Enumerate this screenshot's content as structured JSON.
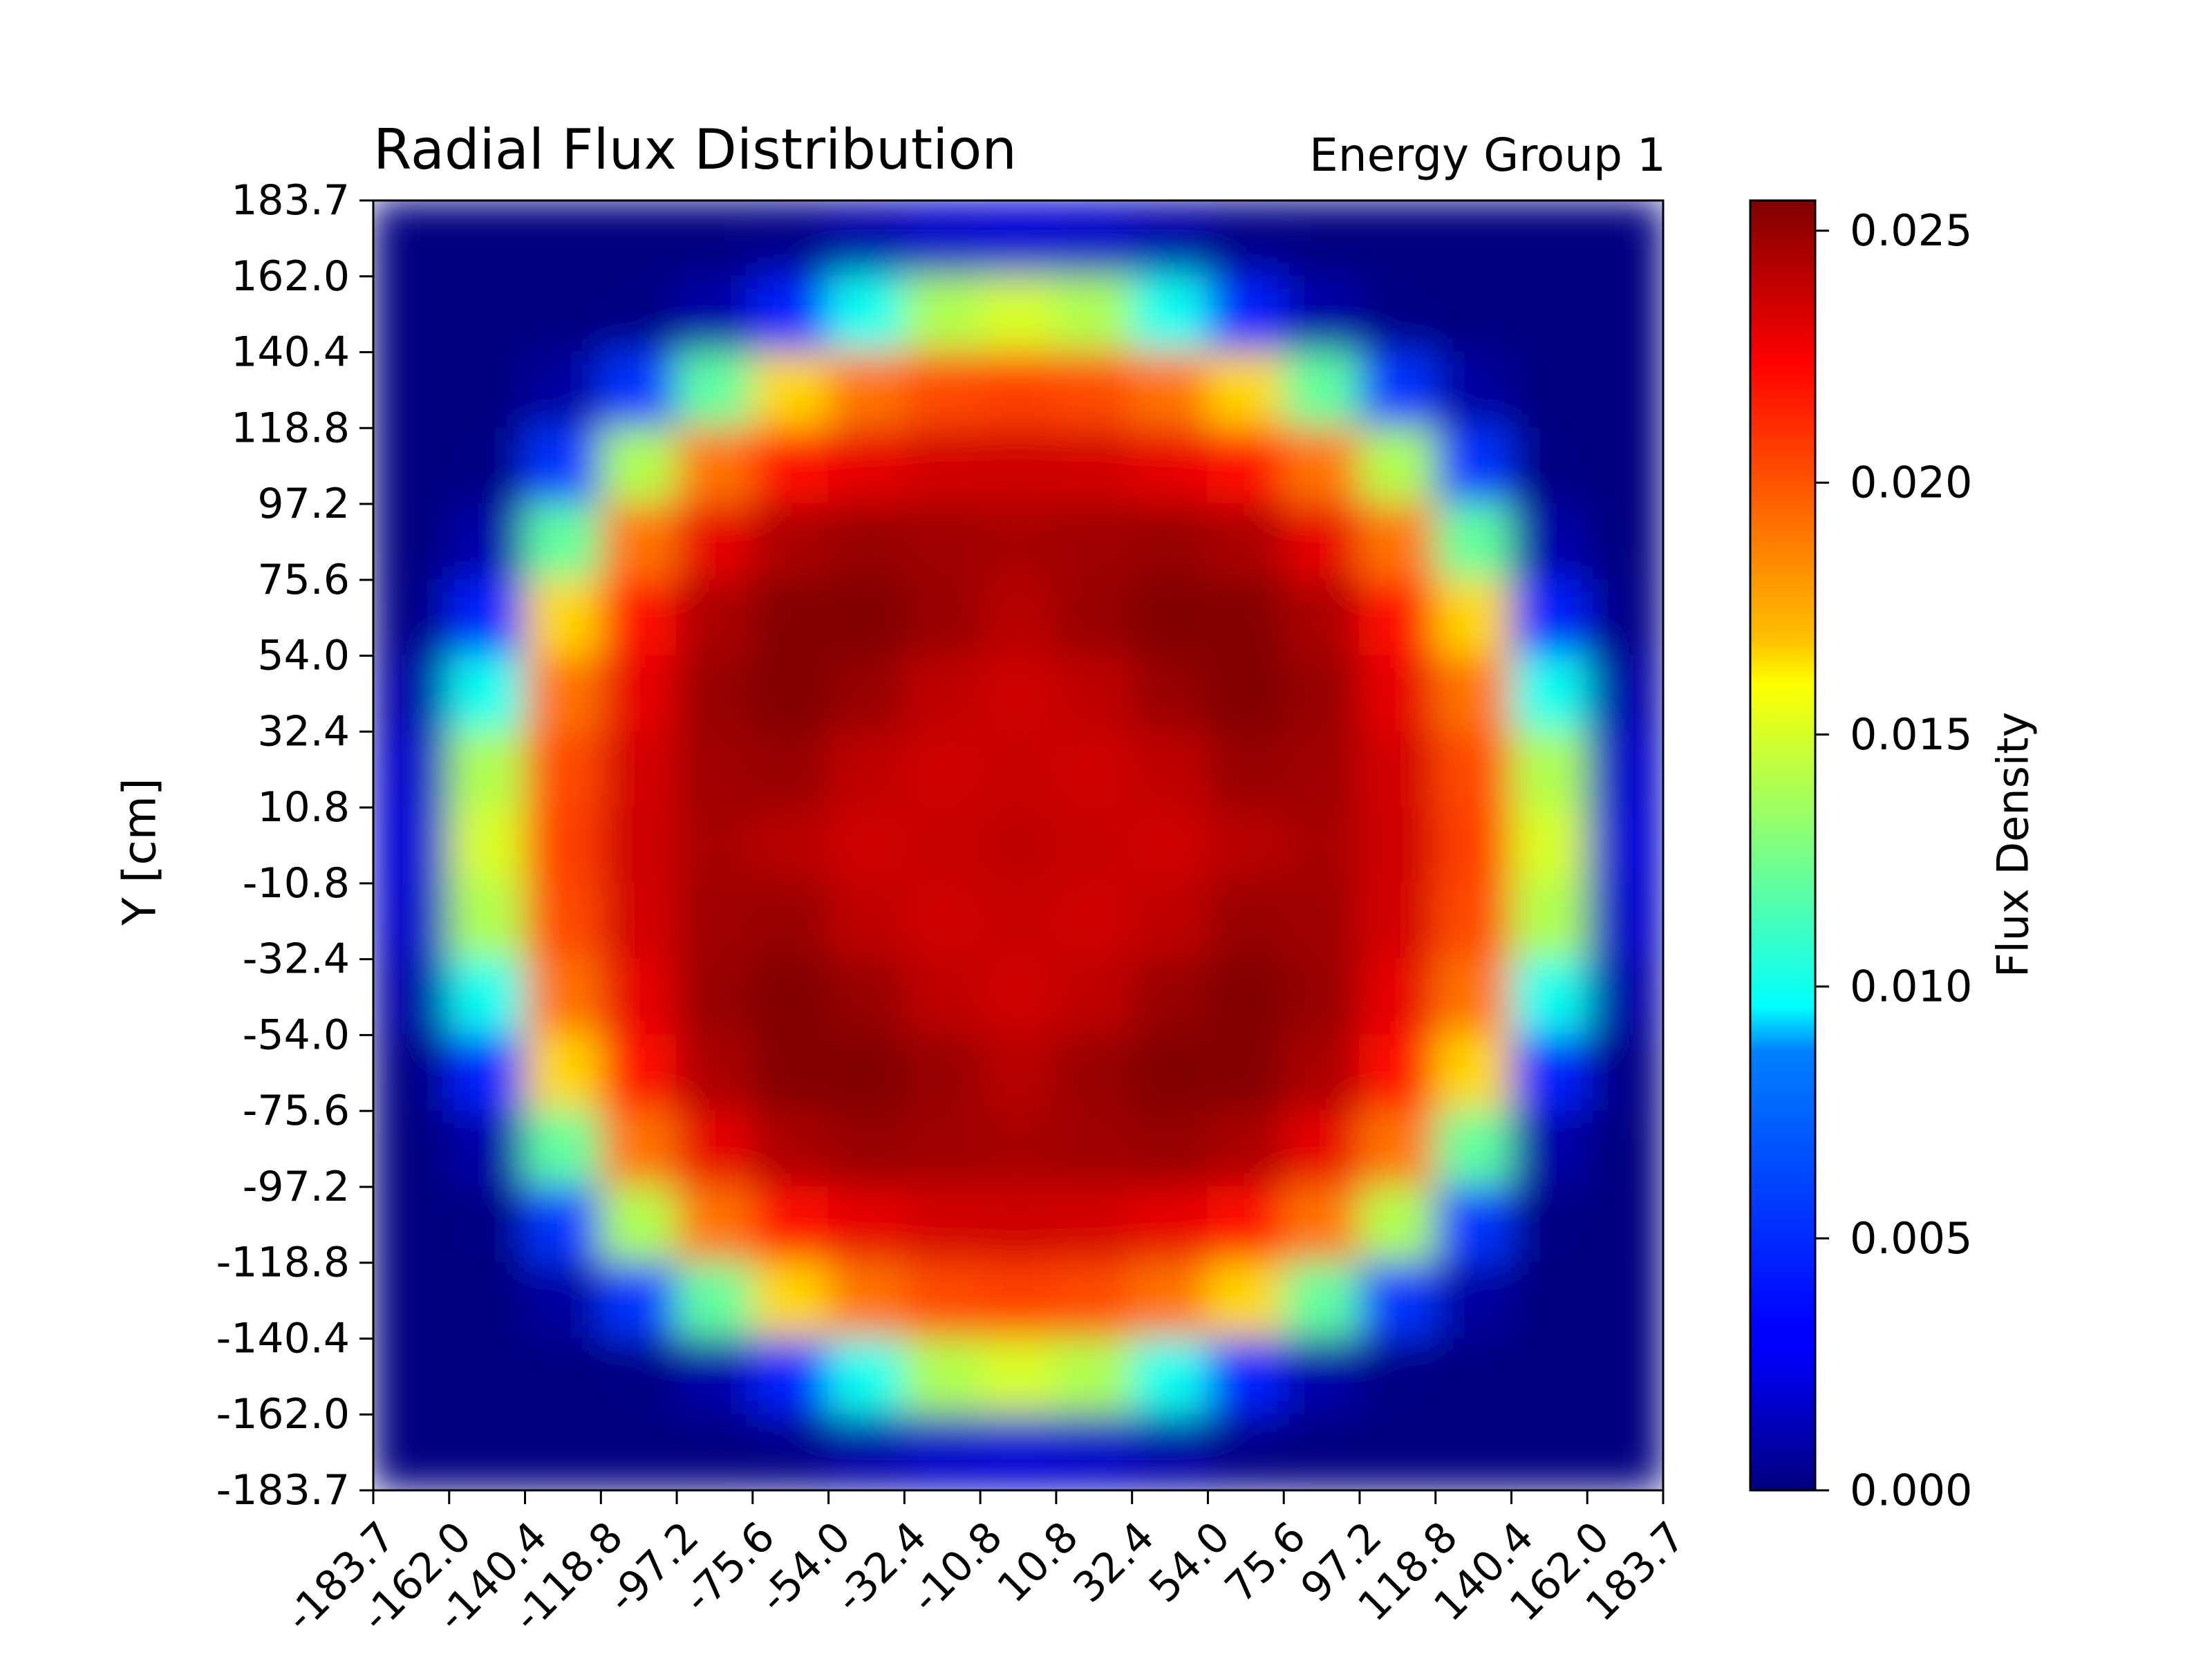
{
  "chart_data": {
    "type": "heatmap",
    "title": "Radial Flux Distribution",
    "subtitle": "Energy Group 1",
    "xlabel": "",
    "ylabel": "Y [cm]",
    "colorbar_label": "Flux Density",
    "colormap": "jet",
    "x_ticks": [
      "-183.7",
      "-162.0",
      "-140.4",
      "-118.8",
      "-97.2",
      "-75.6",
      "-54.0",
      "-32.4",
      "-10.8",
      "10.8",
      "32.4",
      "54.0",
      "75.6",
      "97.2",
      "118.8",
      "140.4",
      "162.0",
      "183.7"
    ],
    "y_ticks": [
      "183.7",
      "162.0",
      "140.4",
      "118.8",
      "97.2",
      "75.6",
      "54.0",
      "32.4",
      "10.8",
      "-10.8",
      "-32.4",
      "-54.0",
      "-75.6",
      "-97.2",
      "-118.8",
      "-140.4",
      "-162.0",
      "-183.7"
    ],
    "colorbar_ticks": [
      "0.000",
      "0.005",
      "0.010",
      "0.015",
      "0.020",
      "0.025"
    ],
    "xlim": [
      -183.7,
      183.7
    ],
    "ylim": [
      -183.7,
      183.7
    ],
    "zlim": [
      0.0,
      0.0256
    ],
    "grid": false,
    "grid_nx": 17,
    "grid_ny": 17,
    "values": [
      [
        0.0,
        0.0,
        0.0,
        0.0,
        0.0,
        0.0002,
        0.001,
        0.0018,
        0.0021,
        0.0018,
        0.001,
        0.0002,
        0.0,
        0.0,
        0.0,
        0.0,
        0.0
      ],
      [
        0.0,
        0.0,
        0.0,
        0.0001,
        0.001,
        0.004,
        0.01,
        0.014,
        0.015,
        0.014,
        0.01,
        0.004,
        0.001,
        0.0001,
        0.0,
        0.0,
        0.0
      ],
      [
        0.0,
        0.0,
        0.0008,
        0.0045,
        0.012,
        0.017,
        0.0195,
        0.0205,
        0.0208,
        0.0205,
        0.0195,
        0.017,
        0.012,
        0.0045,
        0.0008,
        0.0,
        0.0
      ],
      [
        0.0,
        0.0001,
        0.0045,
        0.014,
        0.0195,
        0.022,
        0.023,
        0.0235,
        0.0236,
        0.0235,
        0.023,
        0.022,
        0.0195,
        0.014,
        0.0045,
        0.0001,
        0.0
      ],
      [
        0.0,
        0.001,
        0.012,
        0.0195,
        0.023,
        0.0245,
        0.025,
        0.0248,
        0.0246,
        0.0248,
        0.025,
        0.0245,
        0.023,
        0.0195,
        0.012,
        0.001,
        0.0
      ],
      [
        0.0002,
        0.004,
        0.017,
        0.022,
        0.0245,
        0.0255,
        0.0256,
        0.025,
        0.0242,
        0.025,
        0.0256,
        0.0255,
        0.0245,
        0.022,
        0.017,
        0.004,
        0.0002
      ],
      [
        0.001,
        0.01,
        0.0195,
        0.023,
        0.025,
        0.0256,
        0.025,
        0.024,
        0.0236,
        0.024,
        0.025,
        0.0256,
        0.025,
        0.023,
        0.0195,
        0.01,
        0.001
      ],
      [
        0.0018,
        0.014,
        0.0205,
        0.0235,
        0.0248,
        0.025,
        0.024,
        0.0236,
        0.0238,
        0.0236,
        0.024,
        0.025,
        0.0248,
        0.0235,
        0.0205,
        0.014,
        0.0018
      ],
      [
        0.0021,
        0.015,
        0.0208,
        0.0236,
        0.0246,
        0.0242,
        0.0236,
        0.0238,
        0.024,
        0.0238,
        0.0236,
        0.0242,
        0.0246,
        0.0236,
        0.0208,
        0.015,
        0.0021
      ],
      [
        0.0018,
        0.014,
        0.0205,
        0.0235,
        0.0248,
        0.025,
        0.024,
        0.0236,
        0.0238,
        0.0236,
        0.024,
        0.025,
        0.0248,
        0.0235,
        0.0205,
        0.014,
        0.0018
      ],
      [
        0.001,
        0.01,
        0.0195,
        0.023,
        0.025,
        0.0256,
        0.025,
        0.024,
        0.0236,
        0.024,
        0.025,
        0.0256,
        0.025,
        0.023,
        0.0195,
        0.01,
        0.001
      ],
      [
        0.0002,
        0.004,
        0.017,
        0.022,
        0.0245,
        0.0255,
        0.0256,
        0.025,
        0.0242,
        0.025,
        0.0256,
        0.0255,
        0.0245,
        0.022,
        0.017,
        0.004,
        0.0002
      ],
      [
        0.0,
        0.001,
        0.012,
        0.0195,
        0.023,
        0.0245,
        0.025,
        0.0248,
        0.0246,
        0.0248,
        0.025,
        0.0245,
        0.023,
        0.0195,
        0.012,
        0.001,
        0.0
      ],
      [
        0.0,
        0.0001,
        0.0045,
        0.014,
        0.0195,
        0.022,
        0.023,
        0.0235,
        0.0236,
        0.0235,
        0.023,
        0.022,
        0.0195,
        0.014,
        0.0045,
        0.0001,
        0.0
      ],
      [
        0.0,
        0.0,
        0.0008,
        0.0045,
        0.012,
        0.017,
        0.0195,
        0.0205,
        0.0208,
        0.0205,
        0.0195,
        0.017,
        0.012,
        0.0045,
        0.0008,
        0.0,
        0.0
      ],
      [
        0.0,
        0.0,
        0.0,
        0.0001,
        0.001,
        0.004,
        0.01,
        0.014,
        0.015,
        0.014,
        0.01,
        0.004,
        0.001,
        0.0001,
        0.0,
        0.0,
        0.0
      ],
      [
        0.0,
        0.0,
        0.0,
        0.0,
        0.0,
        0.0002,
        0.001,
        0.0018,
        0.0021,
        0.0018,
        0.001,
        0.0002,
        0.0,
        0.0,
        0.0,
        0.0,
        0.0
      ]
    ]
  }
}
